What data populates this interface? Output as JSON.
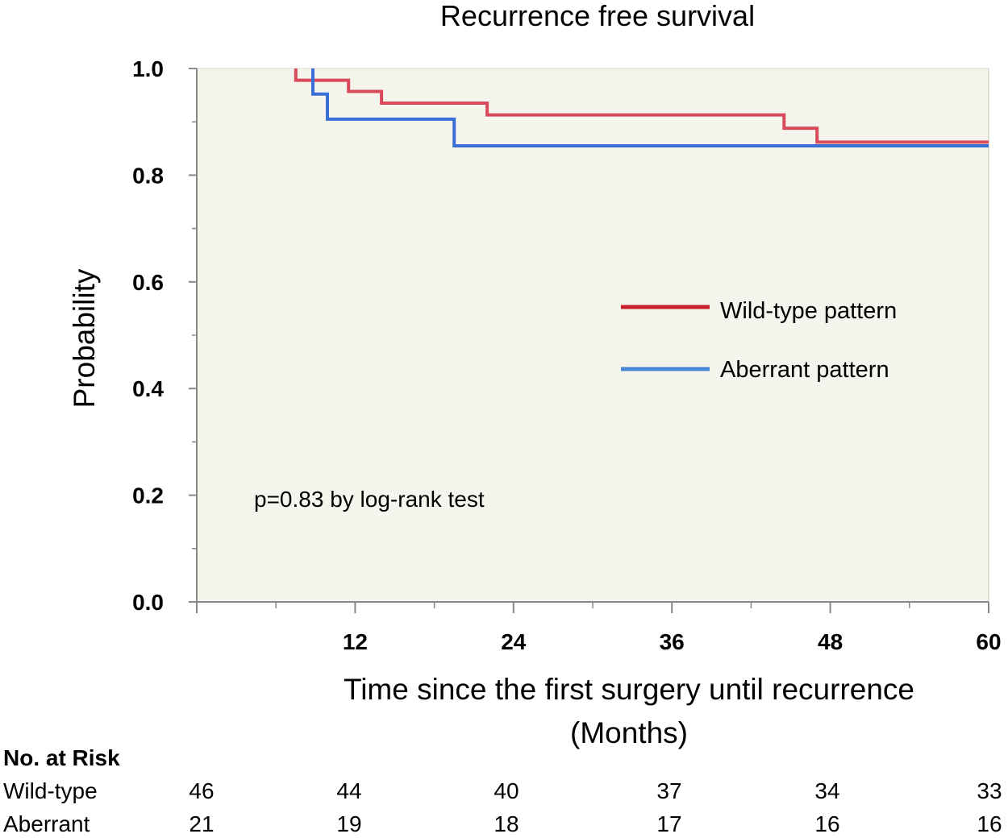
{
  "chart_data": {
    "type": "line",
    "title": "Recurrence free survival",
    "xlabel_line1": "Time since the first surgery until recurrence",
    "xlabel_line2": "(Months)",
    "ylabel": "Probability",
    "xlim": [
      0,
      60
    ],
    "ylim": [
      0,
      1
    ],
    "x_ticks": [
      12,
      24,
      36,
      48,
      60
    ],
    "x_tick_labels": [
      "12",
      "24",
      "36",
      "48",
      "60"
    ],
    "y_ticks": [
      0.0,
      0.2,
      0.4,
      0.6,
      0.8,
      1.0
    ],
    "y_tick_labels": [
      "0.0",
      "0.2",
      "0.4",
      "0.6",
      "0.8",
      "1.0"
    ],
    "annotation": "p=0.83 by log-rank test",
    "legend_position": "right-middle",
    "series": [
      {
        "name": "Wild-type pattern",
        "color": "#d94a5a",
        "legend_color": "#cc1f2e",
        "steps": [
          [
            7.5,
            1.0
          ],
          [
            7.5,
            0.978
          ],
          [
            11.5,
            0.978
          ],
          [
            11.5,
            0.957
          ],
          [
            14,
            0.957
          ],
          [
            14,
            0.935
          ],
          [
            22,
            0.935
          ],
          [
            22,
            0.913
          ],
          [
            44.5,
            0.913
          ],
          [
            44.5,
            0.888
          ],
          [
            47,
            0.888
          ],
          [
            47,
            0.862
          ],
          [
            60,
            0.862
          ]
        ]
      },
      {
        "name": "Aberrant pattern",
        "color": "#3a6fd6",
        "legend_color": "#4a86d6",
        "steps": [
          [
            8.8,
            1.0
          ],
          [
            8.8,
            0.952
          ],
          [
            9.9,
            0.952
          ],
          [
            9.9,
            0.905
          ],
          [
            19.5,
            0.905
          ],
          [
            19.5,
            0.855
          ],
          [
            60,
            0.855
          ]
        ]
      }
    ]
  },
  "risk_table": {
    "header": "No. at Risk",
    "rows": [
      {
        "label": "Wild-type",
        "values": [
          "46",
          "44",
          "40",
          "37",
          "34",
          "33"
        ]
      },
      {
        "label": "Aberrant",
        "values": [
          "21",
          "19",
          "18",
          "17",
          "16",
          "16"
        ]
      }
    ]
  }
}
